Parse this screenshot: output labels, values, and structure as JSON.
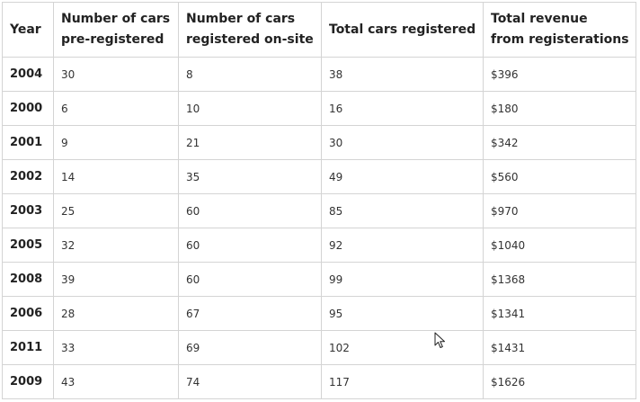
{
  "table": {
    "headers": [
      "Year",
      "Number of cars pre-registered",
      "Number of cars registered on-site",
      "Total cars registered",
      "Total revenue from registerations"
    ],
    "header_lines": [
      [
        "Year"
      ],
      [
        "Number of cars",
        "pre-registered"
      ],
      [
        "Number of cars",
        "registered on-site"
      ],
      [
        "Total cars registered"
      ],
      [
        "Total revenue",
        "from registerations"
      ]
    ],
    "rows": [
      [
        "2004",
        "30",
        "8",
        "38",
        "$396"
      ],
      [
        "2000",
        "6",
        "10",
        "16",
        "$180"
      ],
      [
        "2001",
        "9",
        "21",
        "30",
        "$342"
      ],
      [
        "2002",
        "14",
        "35",
        "49",
        "$560"
      ],
      [
        "2003",
        "25",
        "60",
        "85",
        "$970"
      ],
      [
        "2005",
        "32",
        "60",
        "92",
        "$1040"
      ],
      [
        "2008",
        "39",
        "60",
        "99",
        "$1368"
      ],
      [
        "2006",
        "28",
        "67",
        "95",
        "$1341"
      ],
      [
        "2011",
        "33",
        "69",
        "102",
        "$1431"
      ],
      [
        "2009",
        "43",
        "74",
        "117",
        "$1626"
      ]
    ]
  },
  "cursor": {
    "icon": "mouse-pointer-icon"
  }
}
